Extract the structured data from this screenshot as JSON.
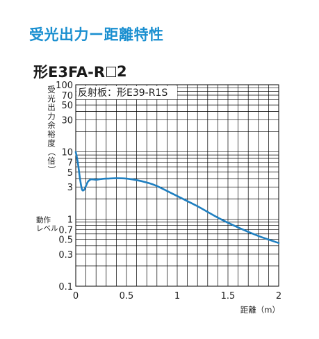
{
  "page": {
    "title": "受光出力ー距離特性",
    "model_prefix": "形E3FA-R",
    "model_suffix": "2"
  },
  "chart_data": {
    "type": "line",
    "yscale": "log",
    "xlabel": "距離（m）",
    "ylabel": "受光出力余裕度（倍）",
    "operation_level_label": "動作\nレベル",
    "annotation": "反射板：形E39-R1S",
    "xlim": [
      0,
      2
    ],
    "ylim": [
      0.1,
      100
    ],
    "x_ticks": [
      0,
      0.5,
      1,
      1.5,
      2
    ],
    "x_tick_labels": [
      "0",
      "0.5",
      "1",
      "1.5",
      "2"
    ],
    "y_ticks": [
      100,
      70,
      50,
      30,
      10,
      7,
      5,
      3,
      1,
      0.7,
      0.5,
      0.3,
      0.1
    ],
    "y_tick_labels": [
      "100",
      "70",
      "50",
      "30",
      "10",
      "7",
      "5",
      "3",
      "1",
      "0.7",
      "0.5",
      "0.3",
      "0.1"
    ],
    "grid": true,
    "line_color": "#1f7fc0",
    "series": [
      {
        "x": [
          0,
          0.02,
          0.04,
          0.06,
          0.08,
          0.1,
          0.12,
          0.15,
          0.2,
          0.25,
          0.3,
          0.4,
          0.5,
          0.6,
          0.7,
          0.8,
          1.0,
          1.2,
          1.4,
          1.6,
          1.8,
          2.0
        ],
        "y": [
          10,
          7,
          4.2,
          2.8,
          2.7,
          3.1,
          3.6,
          3.9,
          3.85,
          3.95,
          4.0,
          4.05,
          4.0,
          3.8,
          3.5,
          3.1,
          2.2,
          1.55,
          1.05,
          0.75,
          0.56,
          0.44
        ]
      }
    ]
  }
}
